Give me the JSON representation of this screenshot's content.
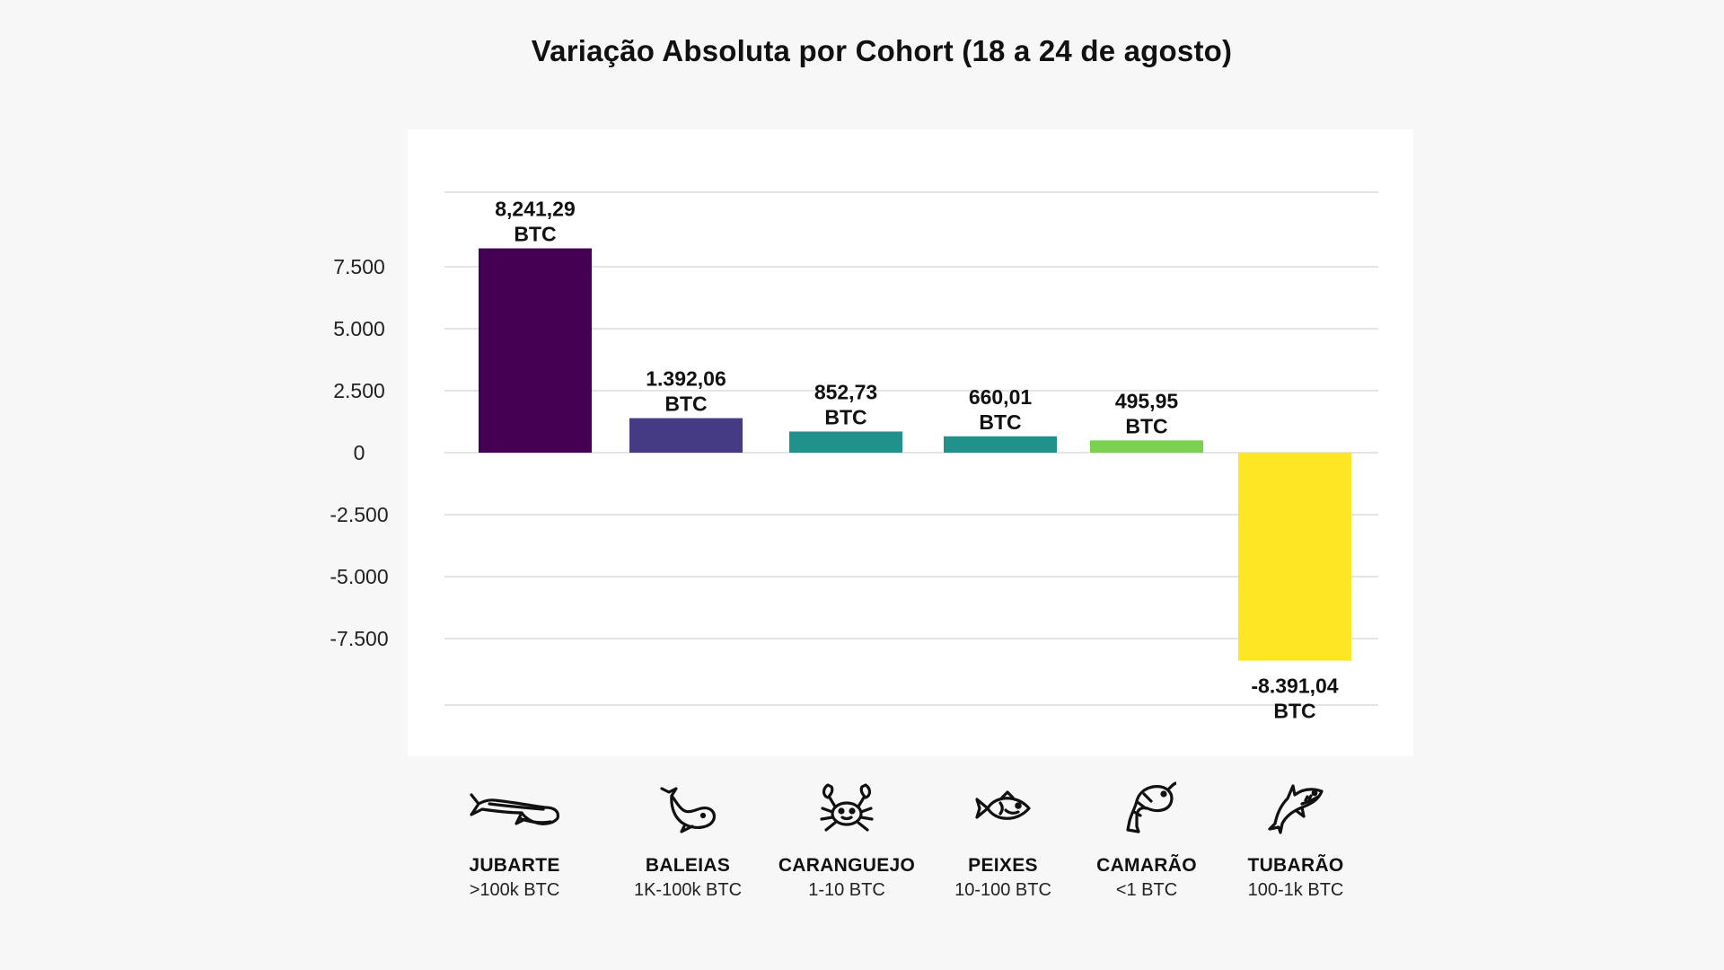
{
  "chart_data": {
    "type": "bar",
    "title": "Variação Absoluta por Cohort (18 a 24 de agosto)",
    "xlabel": "",
    "ylabel": "",
    "ylim": [
      -10000,
      10000
    ],
    "yticks": [
      {
        "value": 7500,
        "label": "7.500"
      },
      {
        "value": 5000,
        "label": "5.000"
      },
      {
        "value": 2500,
        "label": "2.500"
      },
      {
        "value": 0,
        "label": "0"
      },
      {
        "value": -2500,
        "label": "-2.500"
      },
      {
        "value": -5000,
        "label": "-5.000"
      },
      {
        "value": -7500,
        "label": "-7.500"
      }
    ],
    "grid": true,
    "categories": [
      "JUBARTE",
      "BALEIAS",
      "CARANGUEJO",
      "PEIXES",
      "CAMARÃO",
      "TUBARÃO"
    ],
    "values": [
      8241.29,
      1392.06,
      852.73,
      660.01,
      495.95,
      -8391.04
    ],
    "value_labels": [
      "8,241,29",
      "1.392,06",
      "852,73",
      "660,01",
      "495,95",
      "-8.391,04"
    ],
    "value_unit": "BTC",
    "colors": [
      "#440154",
      "#443b84",
      "#21918c",
      "#21918c",
      "#7ad151",
      "#fde725"
    ]
  },
  "cohorts": [
    {
      "name": "JUBARTE",
      "range": ">100k BTC",
      "icon": "humpback-whale-icon"
    },
    {
      "name": "BALEIAS",
      "range": "1K-100k BTC",
      "icon": "whale-icon"
    },
    {
      "name": "CARANGUEJO",
      "range": "1-10 BTC",
      "icon": "crab-icon"
    },
    {
      "name": "PEIXES",
      "range": "10-100 BTC",
      "icon": "fish-icon"
    },
    {
      "name": "CAMARÃO",
      "range": "<1 BTC",
      "icon": "shrimp-icon"
    },
    {
      "name": "TUBARÃO",
      "range": "100-1k BTC",
      "icon": "shark-icon"
    }
  ]
}
